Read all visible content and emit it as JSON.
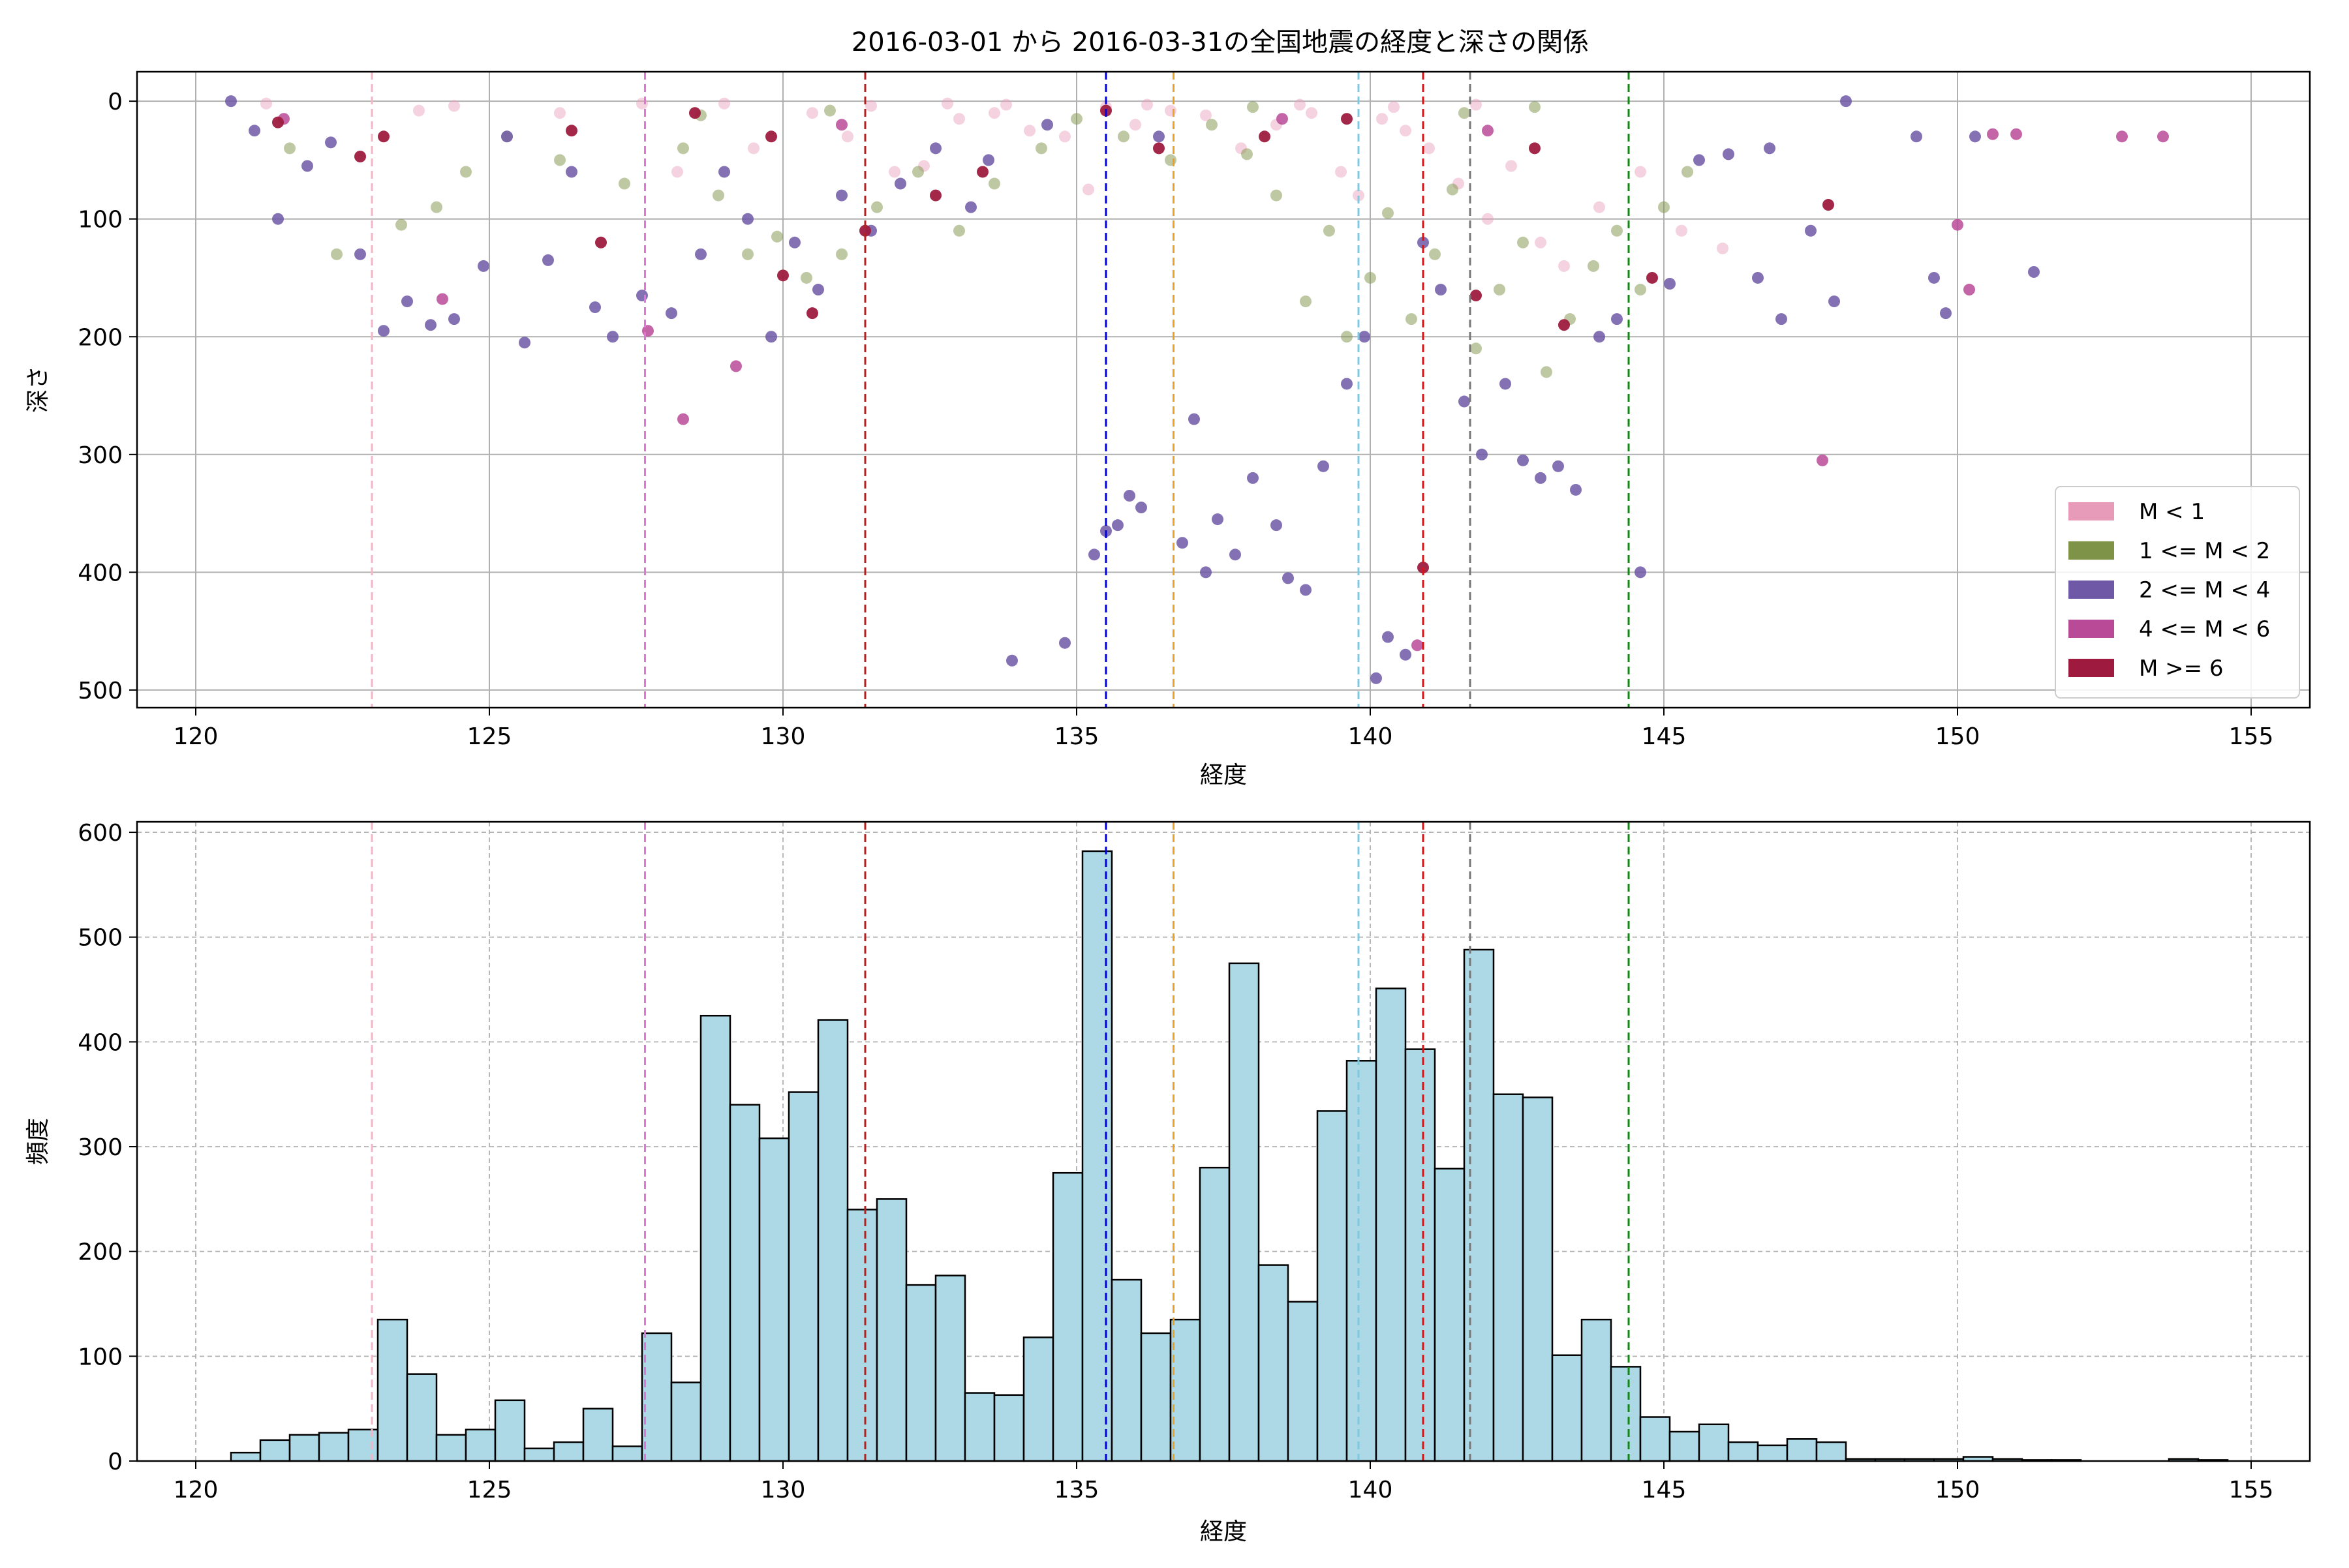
{
  "figure": {
    "title": "2016-03-01 から 2016-03-31の全国地震の経度と深さの関係"
  },
  "colors": {
    "m_lt_1": "#e79bb8",
    "m_1_2": "#7e9248",
    "m_2_4": "#6f58a6",
    "m_4_6": "#b84a98",
    "m_ge_6": "#9e1b3f",
    "hist_fill": "#add8e6",
    "hist_edge": "#000000"
  },
  "chart_data": [
    {
      "type": "scatter",
      "title": "2016-03-01 から 2016-03-31の全国地震の経度と深さの関係",
      "xlabel": "経度",
      "ylabel": "深さ",
      "xlim": [
        119,
        156
      ],
      "ylim": [
        515,
        -25
      ],
      "y_inverted": true,
      "xticks": [
        120,
        125,
        130,
        135,
        140,
        145,
        150,
        155
      ],
      "yticks": [
        0,
        100,
        200,
        300,
        400,
        500
      ],
      "grid": true,
      "legend_position": "lower right",
      "series": [
        {
          "name": "M < 1",
          "color": "#e79bb8",
          "alpha": 0.45,
          "points": [
            [
              121.2,
              2
            ],
            [
              123.8,
              8
            ],
            [
              124.4,
              4
            ],
            [
              126.2,
              10
            ],
            [
              127.6,
              2
            ],
            [
              128.2,
              60
            ],
            [
              129.5,
              40
            ],
            [
              130.5,
              10
            ],
            [
              131.1,
              30
            ],
            [
              131.9,
              60
            ],
            [
              132.4,
              55
            ],
            [
              133.0,
              15
            ],
            [
              133.6,
              10
            ],
            [
              134.2,
              25
            ],
            [
              134.8,
              30
            ],
            [
              135.2,
              75
            ],
            [
              135.5,
              5
            ],
            [
              136.0,
              20
            ],
            [
              136.6,
              8
            ],
            [
              137.2,
              12
            ],
            [
              137.8,
              40
            ],
            [
              138.4,
              20
            ],
            [
              139.0,
              10
            ],
            [
              139.5,
              60
            ],
            [
              139.8,
              80
            ],
            [
              140.2,
              15
            ],
            [
              140.6,
              25
            ],
            [
              141.0,
              40
            ],
            [
              141.5,
              70
            ],
            [
              142.0,
              100
            ],
            [
              142.4,
              55
            ],
            [
              142.9,
              120
            ],
            [
              143.3,
              140
            ],
            [
              143.9,
              90
            ],
            [
              144.6,
              60
            ],
            [
              145.3,
              110
            ],
            [
              146.0,
              125
            ],
            [
              129.0,
              2
            ],
            [
              131.5,
              4
            ],
            [
              133.8,
              3
            ],
            [
              136.2,
              3
            ],
            [
              138.8,
              3
            ],
            [
              141.8,
              3
            ],
            [
              140.4,
              5
            ],
            [
              132.8,
              2
            ]
          ]
        },
        {
          "name": "1 <= M < 2",
          "color": "#7e9248",
          "alpha": 0.5,
          "points": [
            [
              121.6,
              40
            ],
            [
              122.4,
              130
            ],
            [
              123.5,
              105
            ],
            [
              124.1,
              90
            ],
            [
              124.6,
              60
            ],
            [
              125.3,
              30
            ],
            [
              126.2,
              50
            ],
            [
              127.3,
              70
            ],
            [
              128.3,
              40
            ],
            [
              128.9,
              80
            ],
            [
              129.4,
              130
            ],
            [
              129.9,
              115
            ],
            [
              130.4,
              150
            ],
            [
              131.0,
              130
            ],
            [
              131.6,
              90
            ],
            [
              132.3,
              60
            ],
            [
              133.0,
              110
            ],
            [
              133.6,
              70
            ],
            [
              134.4,
              40
            ],
            [
              135.0,
              15
            ],
            [
              135.8,
              30
            ],
            [
              136.6,
              50
            ],
            [
              137.3,
              20
            ],
            [
              137.9,
              45
            ],
            [
              138.4,
              80
            ],
            [
              138.9,
              170
            ],
            [
              139.3,
              110
            ],
            [
              139.6,
              200
            ],
            [
              140.0,
              150
            ],
            [
              140.3,
              95
            ],
            [
              140.7,
              185
            ],
            [
              141.1,
              130
            ],
            [
              141.4,
              75
            ],
            [
              141.8,
              210
            ],
            [
              142.2,
              160
            ],
            [
              142.6,
              120
            ],
            [
              143.0,
              230
            ],
            [
              143.4,
              185
            ],
            [
              143.8,
              140
            ],
            [
              144.2,
              110
            ],
            [
              144.6,
              160
            ],
            [
              145.0,
              90
            ],
            [
              145.4,
              60
            ],
            [
              138.0,
              5
            ],
            [
              141.6,
              10
            ],
            [
              130.8,
              8
            ],
            [
              128.6,
              12
            ],
            [
              142.8,
              5
            ]
          ]
        },
        {
          "name": "2 <= M < 4",
          "color": "#6f58a6",
          "alpha": 0.85,
          "points": [
            [
              120.6,
              0
            ],
            [
              121.0,
              25
            ],
            [
              121.4,
              100
            ],
            [
              121.9,
              55
            ],
            [
              122.3,
              35
            ],
            [
              122.8,
              130
            ],
            [
              123.2,
              195
            ],
            [
              123.6,
              170
            ],
            [
              124.0,
              190
            ],
            [
              124.4,
              185
            ],
            [
              124.9,
              140
            ],
            [
              125.3,
              30
            ],
            [
              125.6,
              205
            ],
            [
              126.0,
              135
            ],
            [
              126.4,
              60
            ],
            [
              126.8,
              175
            ],
            [
              127.1,
              200
            ],
            [
              127.6,
              165
            ],
            [
              128.1,
              180
            ],
            [
              128.6,
              130
            ],
            [
              129.0,
              60
            ],
            [
              129.4,
              100
            ],
            [
              129.8,
              200
            ],
            [
              130.2,
              120
            ],
            [
              130.6,
              160
            ],
            [
              131.0,
              80
            ],
            [
              131.5,
              110
            ],
            [
              132.0,
              70
            ],
            [
              132.6,
              40
            ],
            [
              133.2,
              90
            ],
            [
              133.9,
              475
            ],
            [
              134.8,
              460
            ],
            [
              135.3,
              385
            ],
            [
              135.5,
              365
            ],
            [
              135.7,
              360
            ],
            [
              135.9,
              335
            ],
            [
              136.1,
              345
            ],
            [
              136.8,
              375
            ],
            [
              137.0,
              270
            ],
            [
              137.2,
              400
            ],
            [
              137.4,
              355
            ],
            [
              137.7,
              385
            ],
            [
              138.0,
              320
            ],
            [
              138.4,
              360
            ],
            [
              138.6,
              405
            ],
            [
              138.9,
              415
            ],
            [
              139.2,
              310
            ],
            [
              139.6,
              240
            ],
            [
              139.9,
              200
            ],
            [
              140.1,
              490
            ],
            [
              140.3,
              455
            ],
            [
              140.6,
              470
            ],
            [
              140.9,
              120
            ],
            [
              141.2,
              160
            ],
            [
              141.6,
              255
            ],
            [
              141.9,
              300
            ],
            [
              142.3,
              240
            ],
            [
              142.6,
              305
            ],
            [
              142.9,
              320
            ],
            [
              143.2,
              310
            ],
            [
              143.5,
              330
            ],
            [
              143.9,
              200
            ],
            [
              144.2,
              185
            ],
            [
              144.6,
              400
            ],
            [
              145.1,
              155
            ],
            [
              145.6,
              50
            ],
            [
              146.1,
              45
            ],
            [
              146.6,
              150
            ],
            [
              147.0,
              185
            ],
            [
              147.5,
              110
            ],
            [
              147.9,
              170
            ],
            [
              148.1,
              0
            ],
            [
              149.3,
              30
            ],
            [
              149.6,
              150
            ],
            [
              149.8,
              180
            ],
            [
              150.3,
              30
            ],
            [
              151.3,
              145
            ],
            [
              146.8,
              40
            ],
            [
              134.5,
              20
            ],
            [
              136.4,
              30
            ],
            [
              133.5,
              50
            ]
          ]
        },
        {
          "name": "4 <= M < 6",
          "color": "#b84a98",
          "alpha": 0.85,
          "points": [
            [
              124.2,
              168
            ],
            [
              127.7,
              195
            ],
            [
              128.3,
              270
            ],
            [
              129.2,
              225
            ],
            [
              140.8,
              462
            ],
            [
              147.7,
              305
            ],
            [
              150.0,
              105
            ],
            [
              150.2,
              160
            ],
            [
              150.6,
              28
            ],
            [
              151.0,
              28
            ],
            [
              152.8,
              30
            ],
            [
              153.5,
              30
            ],
            [
              121.5,
              15
            ],
            [
              131.0,
              20
            ],
            [
              138.5,
              15
            ],
            [
              142.0,
              25
            ]
          ]
        },
        {
          "name": "M >= 6",
          "color": "#9e1b3f",
          "alpha": 0.95,
          "points": [
            [
              121.4,
              18
            ],
            [
              122.8,
              47
            ],
            [
              123.2,
              30
            ],
            [
              126.4,
              25
            ],
            [
              126.9,
              120
            ],
            [
              128.5,
              10
            ],
            [
              129.8,
              30
            ],
            [
              130.0,
              148
            ],
            [
              130.5,
              180
            ],
            [
              131.4,
              110
            ],
            [
              132.6,
              80
            ],
            [
              133.4,
              60
            ],
            [
              135.5,
              8
            ],
            [
              136.4,
              40
            ],
            [
              140.9,
              396
            ],
            [
              141.8,
              165
            ],
            [
              143.3,
              190
            ],
            [
              144.8,
              150
            ],
            [
              147.8,
              88
            ],
            [
              138.2,
              30
            ],
            [
              142.8,
              40
            ],
            [
              139.6,
              15
            ]
          ]
        }
      ],
      "vertical_lines": [
        {
          "x": 123.0,
          "color": "#f4b6c6"
        },
        {
          "x": 127.65,
          "color": "#e673d8"
        },
        {
          "x": 131.4,
          "color": "#b22222"
        },
        {
          "x": 135.5,
          "color": "#0000dd"
        },
        {
          "x": 136.65,
          "color": "#f0a020"
        },
        {
          "x": 139.8,
          "color": "#80c8e0"
        },
        {
          "x": 140.9,
          "color": "#dd1111"
        },
        {
          "x": 141.7,
          "color": "#777777"
        },
        {
          "x": 144.4,
          "color": "#118811"
        }
      ]
    },
    {
      "type": "bar",
      "title": "",
      "xlabel": "経度",
      "ylabel": "頻度",
      "xlim": [
        119,
        156
      ],
      "ylim": [
        0,
        610
      ],
      "xticks": [
        120,
        125,
        130,
        135,
        140,
        145,
        150,
        155
      ],
      "yticks": [
        0,
        100,
        200,
        300,
        400,
        500,
        600
      ],
      "grid": true,
      "bin_start": 120.6,
      "bin_width": 0.5,
      "values": [
        8,
        20,
        25,
        27,
        30,
        135,
        83,
        25,
        30,
        58,
        12,
        18,
        50,
        14,
        122,
        75,
        425,
        340,
        308,
        352,
        421,
        240,
        250,
        168,
        177,
        65,
        63,
        118,
        275,
        582,
        173,
        122,
        135,
        280,
        475,
        187,
        152,
        334,
        382,
        451,
        393,
        279,
        488,
        350,
        347,
        101,
        135,
        90,
        42,
        28,
        35,
        18,
        15,
        21,
        18,
        2,
        2,
        2,
        2,
        4,
        2,
        1,
        1,
        0,
        0,
        0,
        2,
        1
      ]
    }
  ]
}
